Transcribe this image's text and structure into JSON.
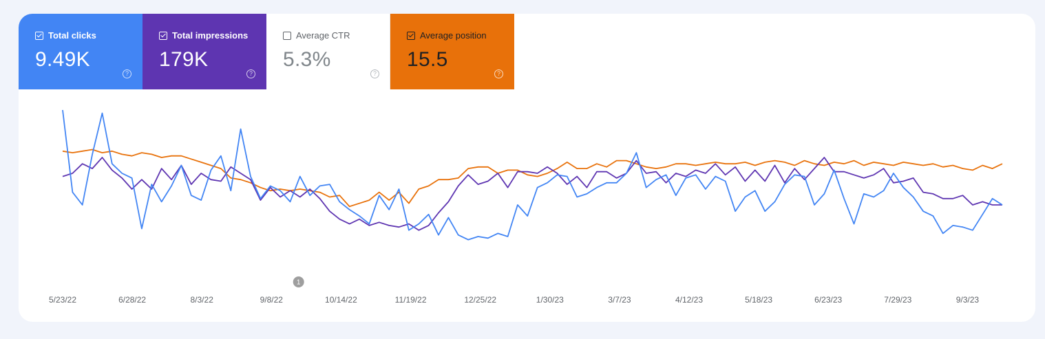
{
  "metrics": [
    {
      "label": "Total clicks",
      "value": "9.49K",
      "checked": true,
      "color": "#4285f4"
    },
    {
      "label": "Total impressions",
      "value": "179K",
      "checked": true,
      "color": "#5e35b1"
    },
    {
      "label": "Average CTR",
      "value": "5.3%",
      "checked": false,
      "color": "#ffffff"
    },
    {
      "label": "Average position",
      "value": "15.5",
      "checked": true,
      "color": "#e8710a"
    }
  ],
  "help_glyph": "?",
  "annotation": {
    "label": "1",
    "date": "9/22/22"
  },
  "chart_data": {
    "type": "line",
    "x_range": [
      "5/23/22",
      "9/21/23"
    ],
    "x_ticks": [
      "5/23/22",
      "6/28/22",
      "8/3/22",
      "9/8/22",
      "10/14/22",
      "11/19/22",
      "12/25/22",
      "1/30/23",
      "3/7/23",
      "4/12/23",
      "5/18/23",
      "6/23/23",
      "7/29/23",
      "9/3/23"
    ],
    "y_axes_hidden": true,
    "grid": false,
    "series": [
      {
        "name": "Total clicks",
        "color": "#4285f4",
        "values": [
          100,
          48,
          40,
          72,
          98,
          66,
          60,
          57,
          25,
          53,
          42,
          52,
          65,
          46,
          43,
          62,
          71,
          49,
          88,
          58,
          44,
          52,
          49,
          42,
          58,
          46,
          52,
          53,
          42,
          37,
          33,
          28,
          46,
          37,
          50,
          24,
          28,
          34,
          21,
          32,
          21,
          18,
          20,
          19,
          22,
          20,
          40,
          33,
          51,
          54,
          59,
          58,
          45,
          47,
          51,
          54,
          54,
          60,
          73,
          51,
          56,
          59,
          46,
          57,
          59,
          50,
          58,
          55,
          36,
          45,
          49,
          36,
          42,
          53,
          59,
          58,
          40,
          47,
          62,
          44,
          28,
          47,
          45,
          49,
          60,
          51,
          45,
          36,
          33,
          22,
          27,
          26,
          24,
          34,
          44,
          40
        ]
      },
      {
        "name": "Total impressions",
        "color": "#5e35b1",
        "values": [
          58,
          60,
          66,
          63,
          70,
          62,
          57,
          50,
          56,
          50,
          63,
          56,
          65,
          53,
          60,
          56,
          55,
          64,
          60,
          56,
          43,
          51,
          45,
          49,
          45,
          50,
          44,
          36,
          31,
          28,
          31,
          27,
          29,
          27,
          26,
          28,
          24,
          27,
          35,
          42,
          52,
          59,
          53,
          55,
          60,
          51,
          61,
          61,
          60,
          64,
          60,
          53,
          58,
          51,
          61,
          61,
          57,
          60,
          68,
          60,
          61,
          54,
          60,
          58,
          62,
          60,
          66,
          59,
          64,
          55,
          62,
          55,
          65,
          54,
          63,
          56,
          63,
          70,
          61,
          61,
          59,
          57,
          59,
          63,
          54,
          55,
          57,
          48,
          47,
          44,
          44,
          46,
          40,
          42,
          40,
          40
        ]
      },
      {
        "name": "Average position",
        "color": "#e8710a",
        "values": [
          74,
          73,
          74,
          75,
          73,
          74,
          72,
          71,
          73,
          72,
          70,
          71,
          71,
          69,
          67,
          65,
          63,
          57,
          56,
          54,
          51,
          49,
          50,
          49,
          50,
          49,
          48,
          45,
          46,
          39,
          41,
          43,
          48,
          43,
          48,
          41,
          50,
          52,
          56,
          56,
          57,
          63,
          64,
          64,
          60,
          62,
          62,
          59,
          58,
          60,
          63,
          67,
          63,
          63,
          66,
          64,
          68,
          68,
          66,
          64,
          63,
          64,
          66,
          66,
          65,
          66,
          67,
          66,
          66,
          67,
          65,
          67,
          68,
          67,
          65,
          68,
          66,
          65,
          67,
          66,
          68,
          65,
          67,
          66,
          65,
          67,
          66,
          65,
          66,
          64,
          65,
          63,
          62,
          65,
          63,
          66
        ]
      }
    ]
  }
}
